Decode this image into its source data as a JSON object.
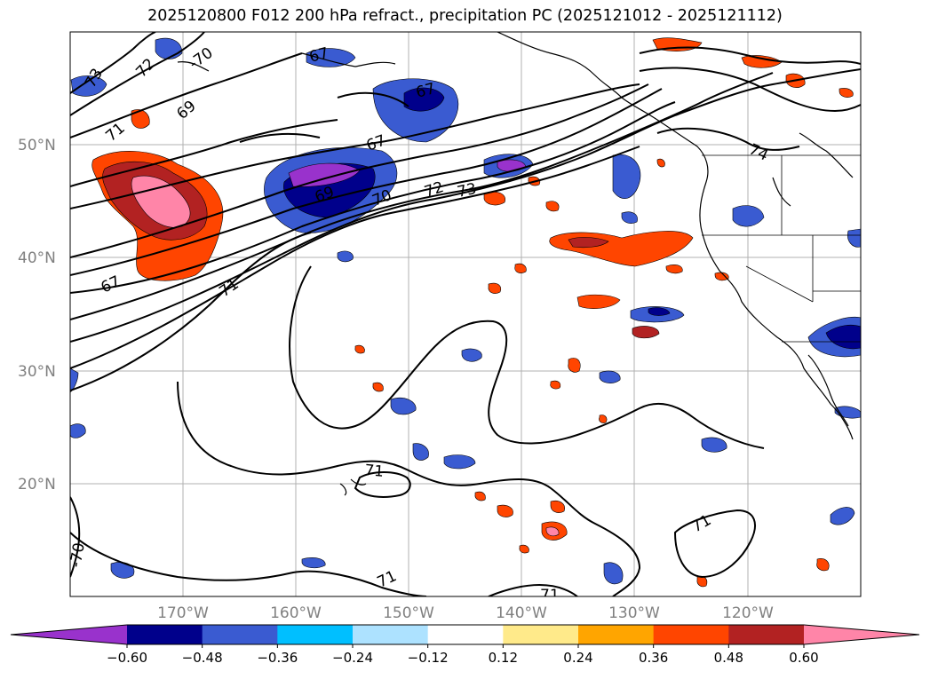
{
  "title": "2025120800 F012 200 hPa refract., precipitation PC (2025121012 - 2025121112)",
  "map": {
    "lat_labels": [
      "50°N",
      "40°N",
      "30°N",
      "20°N"
    ],
    "lon_labels": [
      "170°W",
      "160°W",
      "150°W",
      "140°W",
      "130°W",
      "120°W"
    ],
    "contour_labels": [
      "-70",
      "72",
      "73",
      "69",
      "71",
      "67",
      "67",
      "67",
      "69",
      "70",
      "72",
      "73",
      "74",
      "67",
      "71",
      "71",
      "71",
      "71",
      "71",
      "-70"
    ]
  },
  "colorbar": {
    "ticks": [
      "−0.60",
      "−0.48",
      "−0.36",
      "−0.24",
      "−0.12",
      "0.12",
      "0.24",
      "0.36",
      "0.48",
      "0.60"
    ],
    "colors": [
      "#9932CC",
      "#00008B",
      "#3A5BD1",
      "#00BFFF",
      "#ADE2FF",
      "#FFFFFF",
      "#FFEA8A",
      "#FFA500",
      "#FF4500",
      "#B22222",
      "#FF85A8"
    ]
  }
}
